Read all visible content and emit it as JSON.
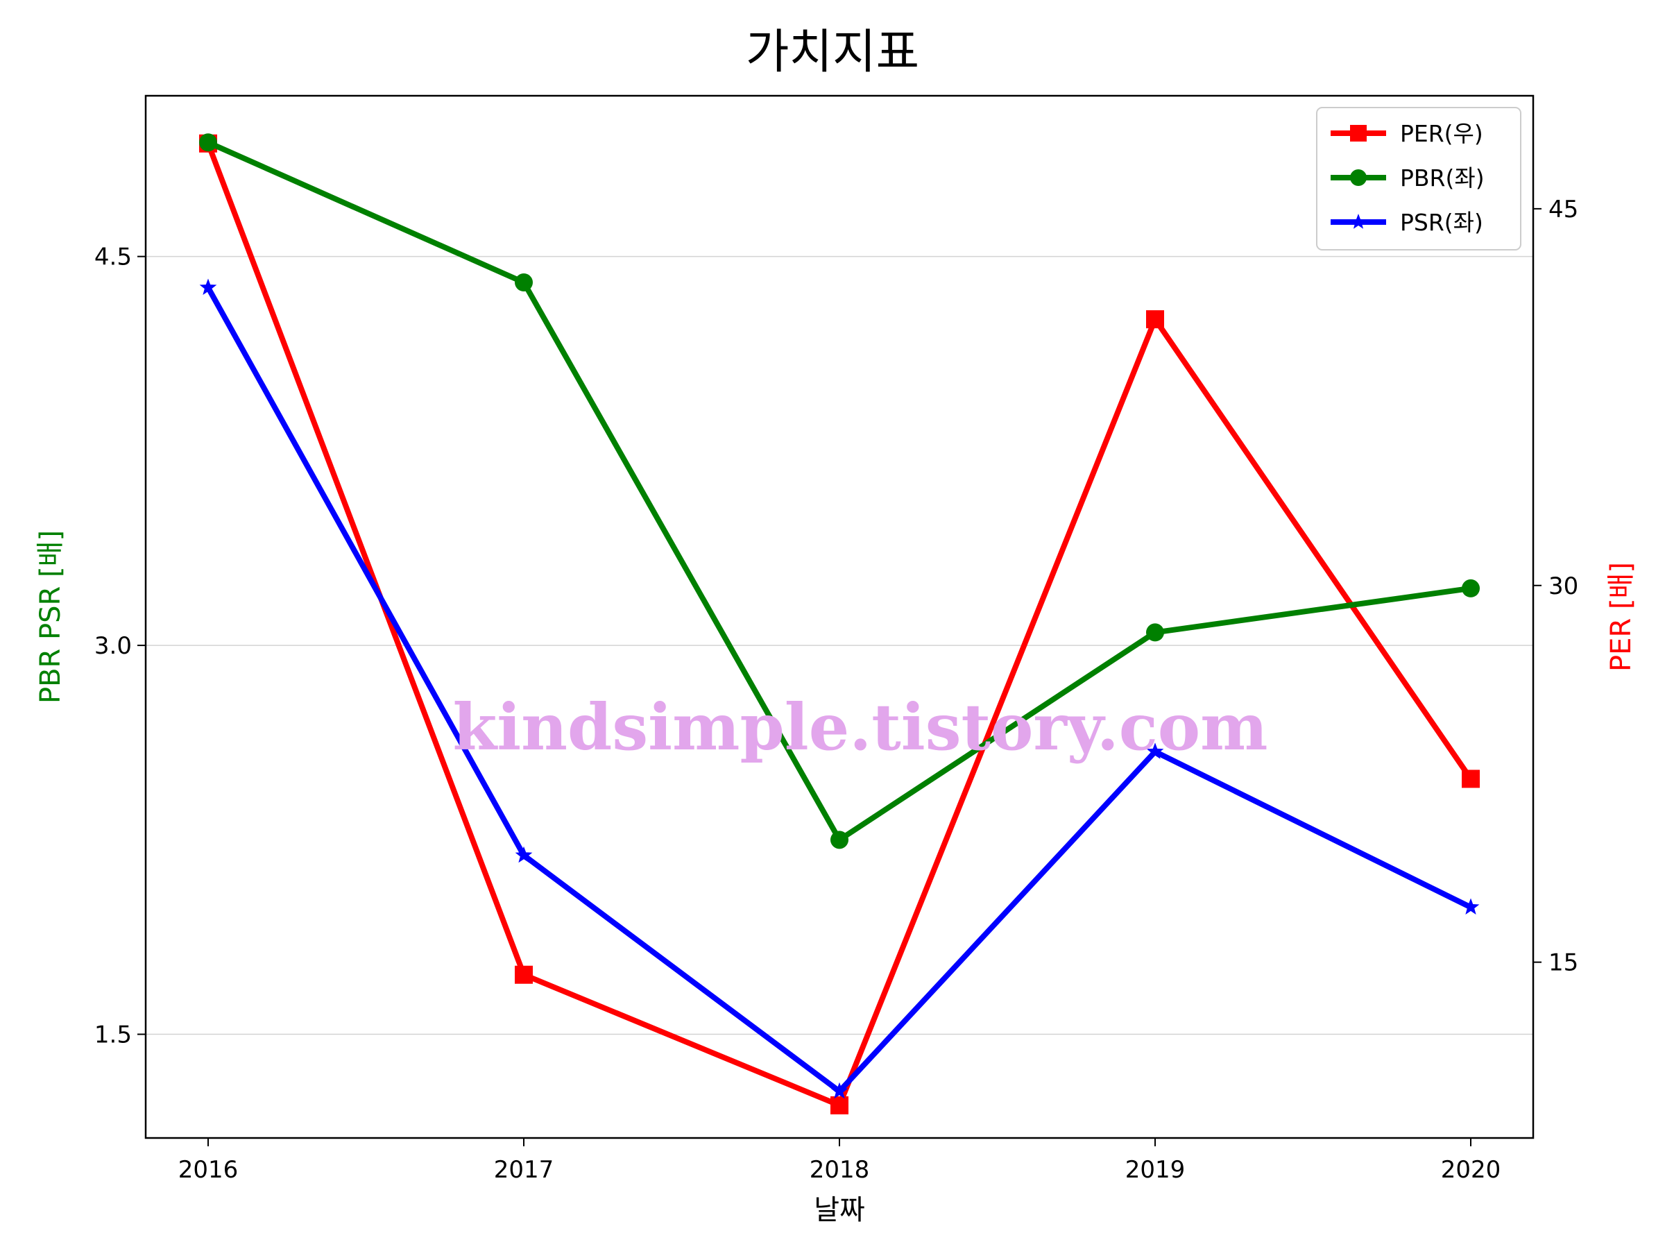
{
  "chart_data": {
    "type": "line",
    "title": "가치지표",
    "xlabel": "날짜",
    "ylabel_left": "PBR PSR [배]",
    "ylabel_right": "PER [배]",
    "categories": [
      "2016",
      "2017",
      "2018",
      "2019",
      "2020"
    ],
    "left_axis": {
      "ylim": [
        1.1,
        5.12
      ],
      "ticks": [
        "1.5",
        "3.0",
        "4.5"
      ],
      "grid": true
    },
    "right_axis": {
      "ylim": [
        8.0,
        49.5
      ],
      "ticks": [
        "15",
        "30",
        "45"
      ]
    },
    "series": [
      {
        "name": "PER(우)",
        "axis": "right",
        "color": "#ff0000",
        "marker": "square",
        "values": [
          47.6,
          14.5,
          9.3,
          40.6,
          22.3
        ]
      },
      {
        "name": "PBR(좌)",
        "axis": "left",
        "color": "#008000",
        "marker": "circle",
        "values": [
          4.94,
          4.4,
          2.25,
          3.05,
          3.22
        ]
      },
      {
        "name": "PSR(좌)",
        "axis": "left",
        "color": "#0000ff",
        "marker": "star",
        "values": [
          4.38,
          2.19,
          1.28,
          2.59,
          1.99
        ]
      }
    ],
    "legend_position": "top-right",
    "watermark": "kindsimple.tistory.com"
  }
}
